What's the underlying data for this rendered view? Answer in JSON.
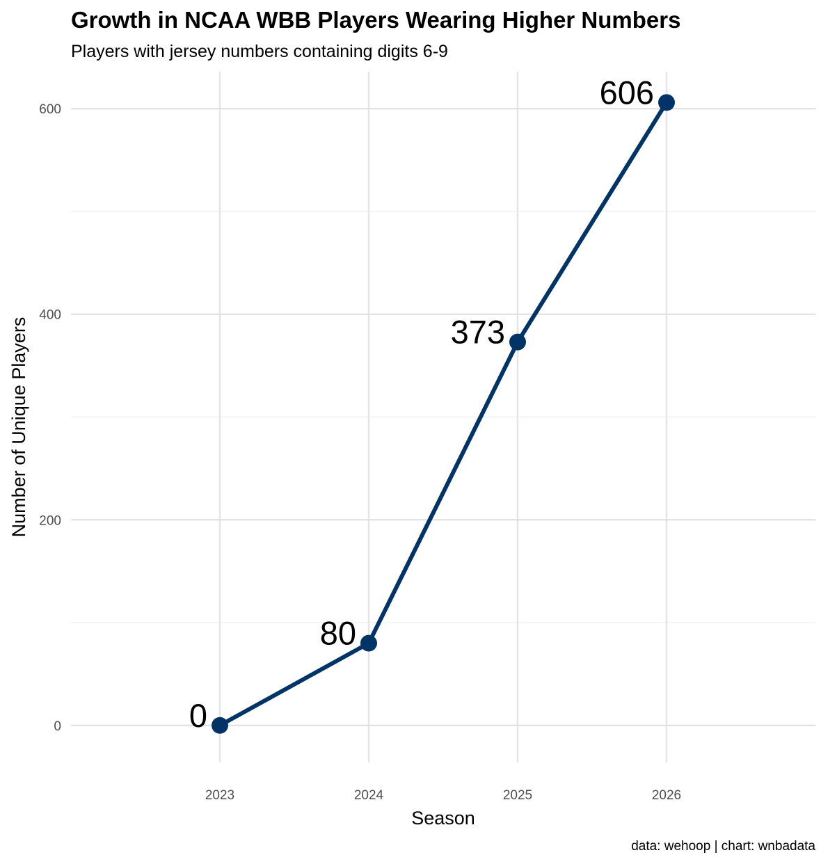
{
  "chart_data": {
    "type": "line",
    "title": "Growth in NCAA WBB Players Wearing Higher Numbers",
    "subtitle": "Players with jersey numbers containing digits 6-9",
    "xlabel": "Season",
    "ylabel": "Number of Unique Players",
    "caption": "data: wehoop | chart: wnbadata",
    "categories": [
      "2023",
      "2024",
      "2025",
      "2026"
    ],
    "values": [
      0,
      80,
      373,
      606
    ],
    "data_labels": [
      "0",
      "80",
      "373",
      "606"
    ],
    "y_ticks": [
      0,
      200,
      400,
      600
    ],
    "y_tick_labels": [
      "0",
      "200",
      "400",
      "600"
    ],
    "ylim": [
      -36,
      636
    ],
    "grid": true,
    "line_color": "#003366",
    "grid_color": "#e6e6e6"
  }
}
